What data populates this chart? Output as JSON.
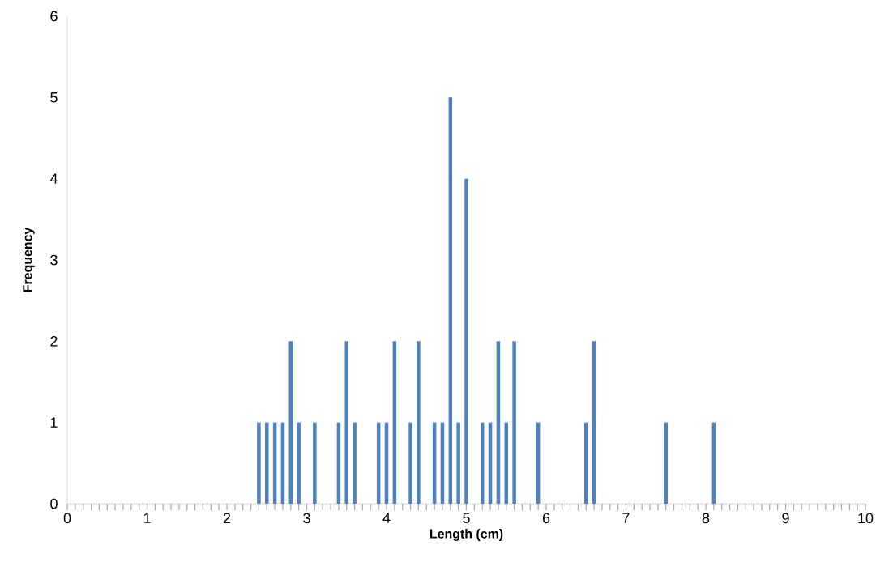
{
  "chart_data": {
    "type": "bar",
    "xlabel": "Length (cm)",
    "ylabel": "Frequency",
    "x": [
      2.4,
      2.5,
      2.6,
      2.7,
      2.8,
      2.9,
      3.1,
      3.4,
      3.5,
      3.6,
      3.9,
      4.0,
      4.1,
      4.3,
      4.4,
      4.6,
      4.7,
      4.8,
      4.9,
      5.0,
      5.2,
      5.3,
      5.4,
      5.5,
      5.6,
      5.9,
      6.5,
      6.6,
      7.5,
      8.1
    ],
    "values": [
      1,
      1,
      1,
      1,
      2,
      1,
      1,
      1,
      2,
      1,
      1,
      1,
      2,
      1,
      2,
      1,
      1,
      5,
      1,
      4,
      1,
      1,
      2,
      1,
      2,
      1,
      1,
      2,
      1,
      1
    ],
    "color": "#4f81bd",
    "xlim": [
      0,
      10
    ],
    "ylim": [
      0,
      6
    ],
    "xticks": [
      0,
      1,
      2,
      3,
      4,
      5,
      6,
      7,
      8,
      9,
      10
    ],
    "yticks": [
      0,
      1,
      2,
      3,
      4,
      5,
      6
    ],
    "grid": false
  }
}
